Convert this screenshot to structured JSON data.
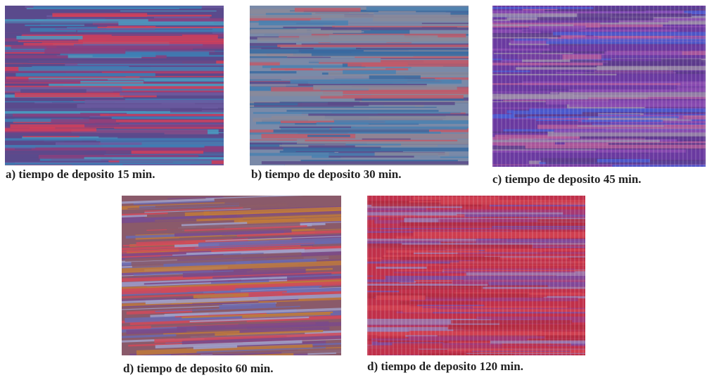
{
  "panels": [
    {
      "caption": "a) tiempo de deposito 15 min."
    },
    {
      "caption": "b) tiempo de deposito 30 min."
    },
    {
      "caption": "c) tiempo de deposito 45 min."
    },
    {
      "caption": "d) tiempo de deposito 60 min."
    },
    {
      "caption": "d) tiempo de deposito 120 min."
    }
  ]
}
